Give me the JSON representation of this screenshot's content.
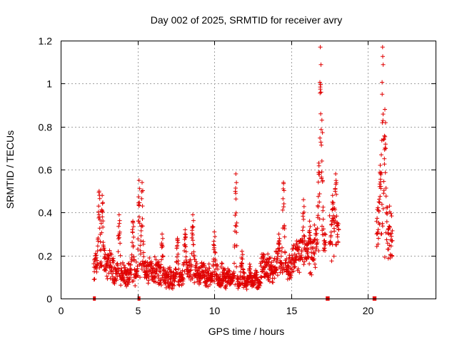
{
  "chart_data": {
    "type": "scatter",
    "title": "Day 002 of 2025, SRMTID for receiver avry",
    "xlabel": "GPS time / hours",
    "ylabel": "SRMTID / TECUs",
    "xlim": [
      0,
      24.4
    ],
    "ylim": [
      0,
      1.2
    ],
    "x_ticks": [
      0,
      5,
      10,
      15,
      20
    ],
    "y_ticks": [
      0,
      0.2,
      0.4,
      0.6,
      0.8,
      1.0,
      1.2
    ],
    "x_tick_labels": [
      "0",
      "5",
      "10",
      "15",
      "20"
    ],
    "y_tick_labels": [
      "0",
      "0.2",
      "0.4",
      "0.6",
      "0.8",
      "1",
      "1.2"
    ],
    "grid": true,
    "marker": "+",
    "color": "#e00000",
    "data_gaps_at_zero": [
      [
        2.1,
        2.2
      ],
      [
        5.0,
        5.1
      ],
      [
        17.25,
        17.5
      ],
      [
        20.3,
        20.55
      ]
    ],
    "segments": [
      {
        "start": 2.15,
        "end": 3.5,
        "base": 0.13,
        "peaks": [
          [
            2.5,
            0.5
          ],
          [
            2.7,
            0.48
          ]
        ]
      },
      {
        "start": 3.5,
        "end": 5.0,
        "base": 0.09,
        "peaks": [
          [
            3.8,
            0.39
          ],
          [
            4.7,
            0.36
          ]
        ]
      },
      {
        "start": 5.0,
        "end": 6.5,
        "base": 0.11,
        "peaks": [
          [
            5.1,
            0.55
          ],
          [
            5.3,
            0.54
          ]
        ]
      },
      {
        "start": 6.5,
        "end": 8.0,
        "base": 0.08,
        "peaks": [
          [
            6.6,
            0.3
          ],
          [
            7.6,
            0.28
          ]
        ]
      },
      {
        "start": 8.0,
        "end": 9.5,
        "base": 0.1,
        "peaks": [
          [
            8.1,
            0.32
          ],
          [
            8.6,
            0.39
          ]
        ]
      },
      {
        "start": 9.5,
        "end": 11.5,
        "base": 0.08,
        "peaks": [
          [
            10.0,
            0.31
          ],
          [
            11.4,
            0.58
          ]
        ]
      },
      {
        "start": 11.5,
        "end": 13.0,
        "base": 0.06,
        "peaks": [
          [
            11.8,
            0.22
          ],
          [
            12.3,
            0.16
          ]
        ]
      },
      {
        "start": 13.0,
        "end": 15.0,
        "base": 0.12,
        "peaks": [
          [
            14.5,
            0.54
          ],
          [
            14.2,
            0.3
          ]
        ]
      },
      {
        "start": 15.0,
        "end": 16.5,
        "base": 0.18,
        "peaks": [
          [
            15.8,
            0.46
          ],
          [
            16.2,
            0.36
          ]
        ]
      },
      {
        "start": 16.5,
        "end": 17.25,
        "base": 0.22,
        "peaks": [
          [
            16.9,
            1.17
          ],
          [
            17.0,
            0.83
          ],
          [
            16.8,
            0.63
          ]
        ]
      },
      {
        "start": 17.5,
        "end": 18.1,
        "base": 0.25,
        "peaks": [
          [
            17.9,
            0.58
          ],
          [
            17.7,
            0.48
          ]
        ]
      },
      {
        "start": 20.55,
        "end": 21.6,
        "base": 0.3,
        "peaks": [
          [
            20.95,
            1.17
          ],
          [
            21.1,
            0.88
          ],
          [
            20.8,
            0.62
          ]
        ]
      }
    ]
  }
}
